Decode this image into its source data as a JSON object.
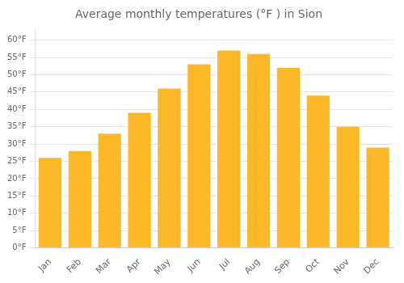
{
  "chart_data": {
    "type": "bar",
    "title": "Average monthly temperatures (°F ) in Sion",
    "categories": [
      "Jan",
      "Feb",
      "Mar",
      "Apr",
      "May",
      "Jun",
      "Jul",
      "Aug",
      "Sep",
      "Oct",
      "Nov",
      "Dec"
    ],
    "values": [
      26,
      28,
      33,
      39,
      46,
      53,
      57,
      56,
      52,
      44,
      35,
      29
    ],
    "color": "#FDB827",
    "ylim": [
      0,
      63
    ],
    "yticks": [
      {
        "value": 0,
        "label": "0°F"
      },
      {
        "value": 5,
        "label": "5°F"
      },
      {
        "value": 10,
        "label": "10°F"
      },
      {
        "value": 15,
        "label": "15°F"
      },
      {
        "value": 20,
        "label": "20°F"
      },
      {
        "value": 25,
        "label": "25°F"
      },
      {
        "value": 30,
        "label": "30°F"
      },
      {
        "value": 35,
        "label": "35°F"
      },
      {
        "value": 40,
        "label": "40°F"
      },
      {
        "value": 45,
        "label": "45°F"
      },
      {
        "value": 50,
        "label": "50°F"
      },
      {
        "value": 55,
        "label": "55°F"
      },
      {
        "value": 60,
        "label": "60°F"
      }
    ],
    "grid": true
  }
}
